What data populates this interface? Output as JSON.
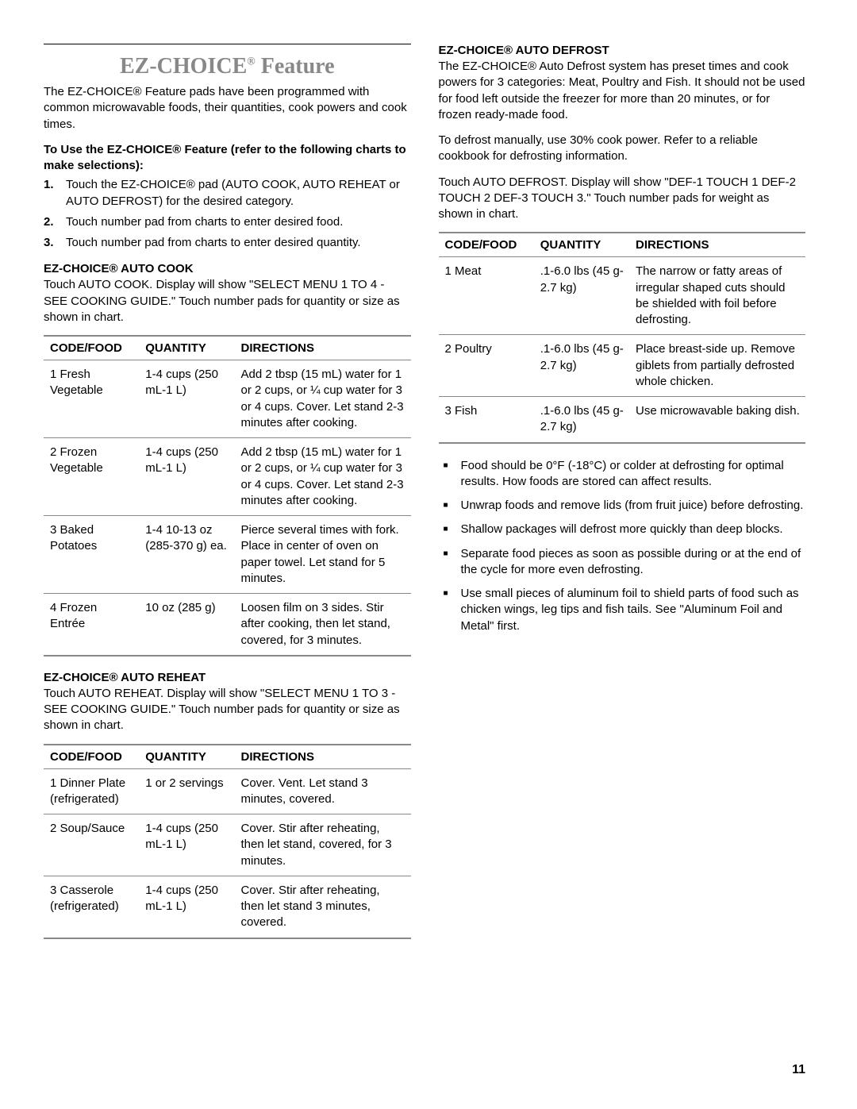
{
  "page_number": "11",
  "left": {
    "main_title_pre": "EZ-CHOICE",
    "main_title_post": " Feature",
    "intro": "The EZ-CHOICE® Feature pads have been programmed with common microwavable foods, their quantities, cook powers and cook times.",
    "use_head": "To Use the EZ-CHOICE® Feature (refer to the following charts to make selections):",
    "steps": [
      "Touch the EZ-CHOICE® pad (AUTO COOK, AUTO REHEAT or AUTO DEFROST) for the desired category.",
      "Touch number pad from charts to enter desired food.",
      "Touch number pad from charts to enter desired quantity."
    ],
    "autocook_head": "EZ-CHOICE® AUTO COOK",
    "autocook_text": "Touch AUTO COOK. Display will show \"SELECT MENU 1 TO 4 - SEE COOKING GUIDE.\" Touch number pads for quantity or size as shown in chart.",
    "table_headers": {
      "c1": "CODE/FOOD",
      "c2": "QUANTITY",
      "c3": "DIRECTIONS"
    },
    "autocook_rows": [
      {
        "c1": "1 Fresh Vegetable",
        "c2": "1-4 cups (250 mL-1 L)",
        "c3": "Add 2 tbsp (15 mL) water for 1 or 2 cups, or ¼ cup water for 3 or 4 cups. Cover. Let stand 2-3 minutes after cooking."
      },
      {
        "c1": "2 Frozen Vegetable",
        "c2": "1-4 cups (250 mL-1 L)",
        "c3": "Add 2 tbsp (15 mL) water for 1 or 2 cups, or ¼ cup water for 3 or 4 cups. Cover. Let stand 2-3 minutes after cooking."
      },
      {
        "c1": "3 Baked Potatoes",
        "c2": "1-4 10-13 oz (285-370 g) ea.",
        "c3": "Pierce several times with fork. Place in center of oven on paper towel. Let stand for 5 minutes."
      },
      {
        "c1": "4 Frozen Entrée",
        "c2": "10 oz (285 g)",
        "c3": "Loosen film on 3 sides. Stir after cooking, then let stand, covered, for 3 minutes."
      }
    ],
    "autoreheat_head": "EZ-CHOICE® AUTO REHEAT",
    "autoreheat_text": "Touch AUTO REHEAT. Display will show \"SELECT MENU 1 TO 3 - SEE COOKING GUIDE.\" Touch number pads for quantity or size as shown in chart.",
    "autoreheat_rows": [
      {
        "c1": "1 Dinner Plate (refrigerated)",
        "c2": "1 or 2 servings",
        "c3": "Cover. Vent. Let stand 3 minutes, covered."
      },
      {
        "c1": "2 Soup/Sauce",
        "c2": "1-4 cups (250 mL-1 L)",
        "c3": "Cover. Stir after reheating, then let stand, covered, for 3 minutes."
      },
      {
        "c1": "3 Casserole (refrigerated)",
        "c2": "1-4 cups (250 mL-1 L)",
        "c3": "Cover. Stir after reheating, then let stand 3 minutes, covered."
      }
    ]
  },
  "right": {
    "autodefrost_head": "EZ-CHOICE® AUTO DEFROST",
    "p1": "The EZ-CHOICE® Auto Defrost system has preset times and cook powers for 3 categories: Meat, Poultry and Fish. It should not be used for food left outside the freezer for more than 20 minutes, or for frozen ready-made food.",
    "p2": "To defrost manually, use 30% cook power. Refer to a reliable cookbook for defrosting information.",
    "p3": "Touch AUTO DEFROST. Display will show \"DEF-1 TOUCH 1 DEF-2 TOUCH 2 DEF-3 TOUCH 3.\" Touch number pads for weight as shown in chart.",
    "table_headers": {
      "c1": "CODE/FOOD",
      "c2": "QUANTITY",
      "c3": "DIRECTIONS"
    },
    "autodefrost_rows": [
      {
        "c1": "1 Meat",
        "c2": ".1-6.0 lbs (45 g-2.7 kg)",
        "c3": "The narrow or fatty areas of irregular shaped cuts should be shielded with foil before defrosting."
      },
      {
        "c1": "2 Poultry",
        "c2": ".1-6.0 lbs (45 g-2.7 kg)",
        "c3": "Place breast-side up. Remove giblets from partially defrosted whole chicken."
      },
      {
        "c1": "3 Fish",
        "c2": ".1-6.0 lbs (45 g-2.7 kg)",
        "c3": "Use microwavable baking dish."
      }
    ],
    "bullets": [
      "Food should be 0°F (-18°C) or colder at defrosting for optimal results. How foods are stored can affect results.",
      "Unwrap foods and remove lids (from fruit juice) before defrosting.",
      "Shallow packages will defrost more quickly than deep blocks.",
      "Separate food pieces as soon as possible during or at the end of the cycle for more even defrosting.",
      "Use small pieces of aluminum foil to shield parts of food such as chicken wings, leg tips and fish tails. See \"Aluminum Foil and Metal\" first."
    ]
  }
}
